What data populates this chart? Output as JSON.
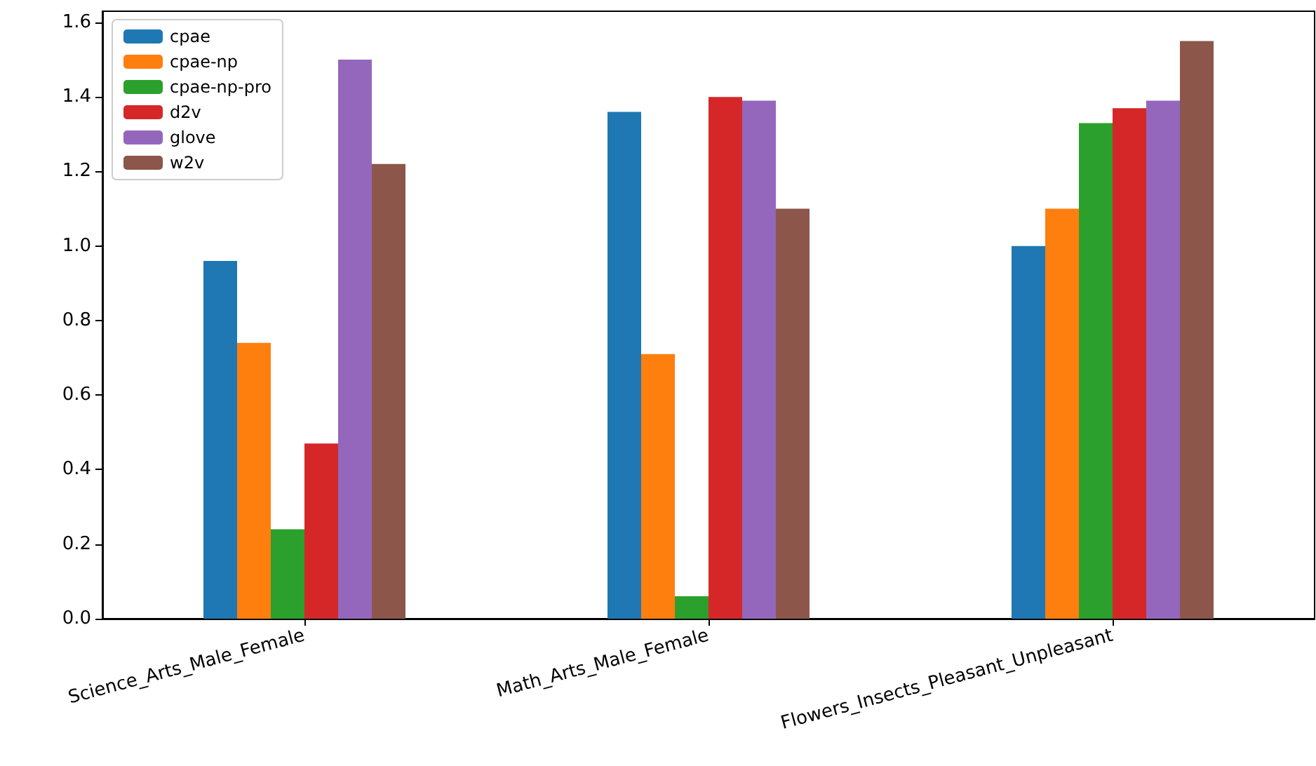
{
  "chart_data": {
    "type": "bar",
    "categories": [
      "Science_Arts_Male_Female",
      "Math_Arts_Male_Female",
      "Flowers_Insects_Pleasant_Unpleasant"
    ],
    "series": [
      {
        "name": "cpae",
        "color": "#1f77b4",
        "values": [
          0.96,
          1.36,
          1.0
        ]
      },
      {
        "name": "cpae-np",
        "color": "#ff7f0e",
        "values": [
          0.74,
          0.71,
          1.1
        ]
      },
      {
        "name": "cpae-np-pro",
        "color": "#2ca02c",
        "values": [
          0.24,
          0.06,
          1.33
        ]
      },
      {
        "name": "d2v",
        "color": "#d62728",
        "values": [
          0.47,
          1.4,
          1.37
        ]
      },
      {
        "name": "glove",
        "color": "#9467bd",
        "values": [
          1.5,
          1.39,
          1.39
        ]
      },
      {
        "name": "w2v",
        "color": "#8c564b",
        "values": [
          1.22,
          1.1,
          1.55
        ]
      }
    ],
    "ylim": [
      0,
      1.63
    ],
    "yticks": [
      {
        "value": 0,
        "label": "0.0"
      },
      {
        "value": 0.2,
        "label": "0.2"
      },
      {
        "value": 0.4,
        "label": "0.4"
      },
      {
        "value": 0.6,
        "label": "0.6"
      },
      {
        "value": 0.8,
        "label": "0.8"
      },
      {
        "value": 1.0,
        "label": "1.0"
      },
      {
        "value": 1.2,
        "label": "1.2"
      },
      {
        "value": 1.4,
        "label": "1.4"
      },
      {
        "value": 1.6,
        "label": "1.6"
      }
    ],
    "grid": false,
    "legend": "top left"
  }
}
